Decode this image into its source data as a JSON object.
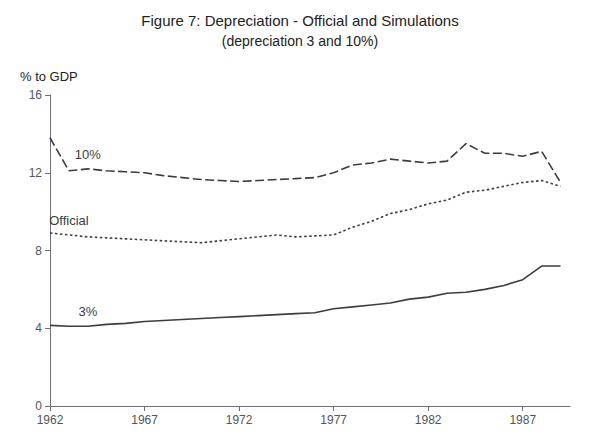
{
  "chart_data": {
    "type": "line",
    "title": "Figure 7: Depreciation - Official and Simulations",
    "subtitle": "(depreciation 3 and 10%)",
    "y_label": "% to GDP",
    "x": [
      1962,
      1963,
      1964,
      1965,
      1966,
      1967,
      1968,
      1969,
      1970,
      1971,
      1972,
      1973,
      1974,
      1975,
      1976,
      1977,
      1978,
      1979,
      1980,
      1981,
      1982,
      1983,
      1984,
      1985,
      1986,
      1987,
      1988,
      1989
    ],
    "series": [
      {
        "name": "10%",
        "color": "#3d3d3d",
        "line_style": "dashed",
        "values": [
          13.8,
          12.1,
          12.2,
          12.1,
          12.05,
          12.0,
          11.85,
          11.75,
          11.65,
          11.6,
          11.55,
          11.6,
          11.65,
          11.7,
          11.75,
          12.0,
          12.4,
          12.5,
          12.7,
          12.6,
          12.5,
          12.6,
          13.5,
          13.0,
          13.0,
          12.85,
          13.1,
          11.5
        ]
      },
      {
        "name": "Official",
        "color": "#3d3d3d",
        "line_style": "dotted",
        "values": [
          8.9,
          8.8,
          8.7,
          8.65,
          8.6,
          8.55,
          8.5,
          8.45,
          8.4,
          8.5,
          8.6,
          8.7,
          8.8,
          8.7,
          8.75,
          8.8,
          9.2,
          9.5,
          9.9,
          10.1,
          10.4,
          10.6,
          11.0,
          11.1,
          11.3,
          11.5,
          11.6,
          11.3
        ]
      },
      {
        "name": "3%",
        "color": "#3d3d3d",
        "line_style": "solid",
        "values": [
          4.15,
          4.1,
          4.1,
          4.2,
          4.25,
          4.35,
          4.4,
          4.45,
          4.5,
          4.55,
          4.6,
          4.65,
          4.7,
          4.75,
          4.8,
          5.0,
          5.1,
          5.2,
          5.3,
          5.5,
          5.6,
          5.8,
          5.85,
          6.0,
          6.2,
          6.5,
          7.2,
          7.2
        ]
      }
    ],
    "xlim": [
      1962,
      1989.5
    ],
    "xticks": [
      1962,
      1967,
      1972,
      1977,
      1982,
      1987
    ],
    "ylim": [
      0,
      16
    ],
    "yticks": [
      0,
      4,
      8,
      12,
      16
    ],
    "grid": false
  }
}
